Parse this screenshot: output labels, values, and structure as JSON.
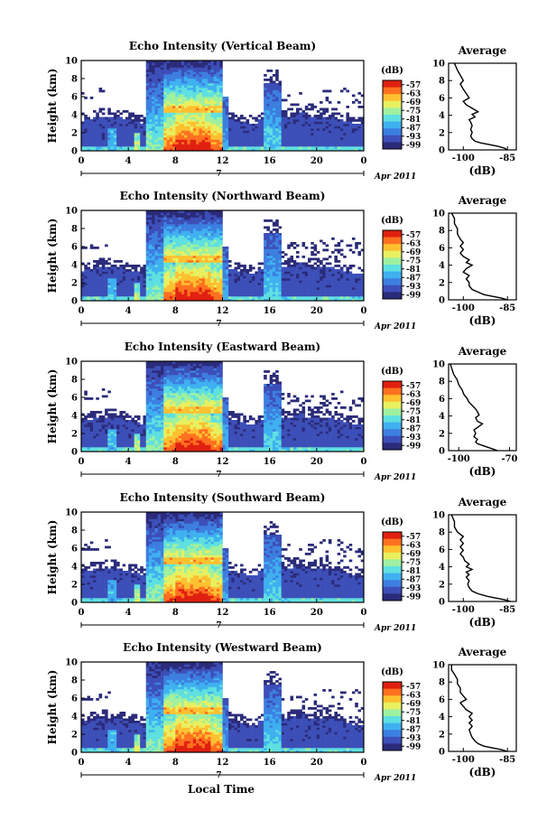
{
  "chart_data": {
    "type": "heatmap",
    "xlabel": "Local Time",
    "date_label": "7",
    "date_suffix": "Apr 2011",
    "x_ticks": [
      "0",
      "4",
      "8",
      "12",
      "16",
      "20",
      "0"
    ],
    "xlim": [
      0,
      24
    ],
    "ylabel": "Height (km)",
    "y_ticks": [
      "0",
      "2",
      "4",
      "6",
      "8",
      "10"
    ],
    "ylim": [
      0,
      10
    ],
    "colorbar": {
      "unit": "(dB)",
      "ticks": [
        "-57",
        "-63",
        "-69",
        "-75",
        "-81",
        "-87",
        "-93",
        "-99"
      ],
      "colors": [
        "#2b2b7a",
        "#3d4fb8",
        "#3d7fe0",
        "#3fb0f0",
        "#5fe0e0",
        "#9ff0a0",
        "#e8f060",
        "#ffc030",
        "#ff7020",
        "#e02010"
      ]
    },
    "average_panel": {
      "title": "Average",
      "xlabel": "(dB)",
      "y_ticks": [
        "0",
        "2",
        "4",
        "6",
        "8",
        "10"
      ]
    },
    "panels": [
      {
        "title": "Echo Intensity (Vertical Beam)",
        "avg_x_ticks": [
          "-100",
          "-85"
        ],
        "avg_xlim": [
          -105,
          -82
        ],
        "avg_profile": [
          [
            -85,
            0.0
          ],
          [
            -86,
            0.2
          ],
          [
            -88,
            0.4
          ],
          [
            -91,
            0.6
          ],
          [
            -94,
            0.8
          ],
          [
            -96,
            1.0
          ],
          [
            -97,
            1.3
          ],
          [
            -97.5,
            1.6
          ],
          [
            -97,
            2.0
          ],
          [
            -97.5,
            2.4
          ],
          [
            -97,
            2.8
          ],
          [
            -97.5,
            3.2
          ],
          [
            -98,
            3.5
          ],
          [
            -96,
            3.8
          ],
          [
            -97,
            4.1
          ],
          [
            -95,
            4.4
          ],
          [
            -97,
            4.8
          ],
          [
            -99,
            5.2
          ],
          [
            -100,
            5.6
          ],
          [
            -98,
            6.0
          ],
          [
            -99,
            6.5
          ],
          [
            -100,
            7.0
          ],
          [
            -101,
            7.6
          ],
          [
            -100,
            8.0
          ],
          [
            -101,
            8.6
          ],
          [
            -102,
            9.2
          ],
          [
            -103,
            10.0
          ]
        ]
      },
      {
        "title": "Echo Intensity (Northward Beam)",
        "avg_x_ticks": [
          "-100",
          "-85"
        ],
        "avg_xlim": [
          -105,
          -82
        ],
        "avg_profile": [
          [
            -85,
            0.0
          ],
          [
            -87,
            0.2
          ],
          [
            -90,
            0.4
          ],
          [
            -93,
            0.6
          ],
          [
            -95,
            0.9
          ],
          [
            -97,
            1.2
          ],
          [
            -98,
            1.6
          ],
          [
            -98,
            2.0
          ],
          [
            -99,
            2.4
          ],
          [
            -98,
            2.8
          ],
          [
            -100,
            3.2
          ],
          [
            -99,
            3.6
          ],
          [
            -97,
            4.0
          ],
          [
            -99,
            4.3
          ],
          [
            -98,
            4.6
          ],
          [
            -100,
            5.0
          ],
          [
            -101,
            5.4
          ],
          [
            -100,
            5.8
          ],
          [
            -101,
            6.2
          ],
          [
            -100,
            6.6
          ],
          [
            -101,
            7.0
          ],
          [
            -102,
            7.6
          ],
          [
            -102,
            8.2
          ],
          [
            -103,
            8.8
          ],
          [
            -103,
            9.4
          ],
          [
            -104,
            10.0
          ]
        ]
      },
      {
        "title": "Echo Intensity (Eastward Beam)",
        "avg_x_ticks": [
          "-100",
          "-70"
        ],
        "avg_xlim": [
          -106,
          -66
        ],
        "avg_profile": [
          [
            -77,
            0.0
          ],
          [
            -80,
            0.2
          ],
          [
            -83,
            0.4
          ],
          [
            -86,
            0.6
          ],
          [
            -89,
            0.8
          ],
          [
            -90,
            1.0
          ],
          [
            -89,
            1.3
          ],
          [
            -91,
            1.6
          ],
          [
            -90,
            2.0
          ],
          [
            -91,
            2.4
          ],
          [
            -88,
            2.8
          ],
          [
            -86,
            3.1
          ],
          [
            -89,
            3.4
          ],
          [
            -90,
            3.8
          ],
          [
            -88,
            4.1
          ],
          [
            -89,
            4.5
          ],
          [
            -90,
            4.8
          ],
          [
            -92,
            5.2
          ],
          [
            -94,
            5.6
          ],
          [
            -95,
            6.0
          ],
          [
            -97,
            6.5
          ],
          [
            -98,
            7.0
          ],
          [
            -100,
            7.6
          ],
          [
            -101,
            8.2
          ],
          [
            -103,
            8.8
          ],
          [
            -104,
            9.4
          ],
          [
            -105,
            10.0
          ]
        ]
      },
      {
        "title": "Echo Intensity (Southward Beam)",
        "avg_x_ticks": [
          "-100",
          "-85"
        ],
        "avg_xlim": [
          -105,
          -82
        ],
        "avg_profile": [
          [
            -84,
            0.0
          ],
          [
            -86,
            0.2
          ],
          [
            -89,
            0.4
          ],
          [
            -92,
            0.6
          ],
          [
            -95,
            0.9
          ],
          [
            -97,
            1.2
          ],
          [
            -98,
            1.6
          ],
          [
            -98.5,
            2.0
          ],
          [
            -98,
            2.4
          ],
          [
            -99,
            2.8
          ],
          [
            -98,
            3.1
          ],
          [
            -99,
            3.4
          ],
          [
            -97,
            3.7
          ],
          [
            -99,
            4.0
          ],
          [
            -98,
            4.3
          ],
          [
            -99.5,
            4.7
          ],
          [
            -100,
            5.1
          ],
          [
            -101,
            5.5
          ],
          [
            -100,
            5.9
          ],
          [
            -101,
            6.3
          ],
          [
            -100,
            6.7
          ],
          [
            -101,
            7.1
          ],
          [
            -100,
            7.5
          ],
          [
            -102,
            8.0
          ],
          [
            -103,
            8.6
          ],
          [
            -103,
            9.2
          ],
          [
            -104,
            10.0
          ]
        ]
      },
      {
        "title": "Echo Intensity (Westward Beam)",
        "avg_x_ticks": [
          "-100",
          "-85"
        ],
        "avg_xlim": [
          -105,
          -82
        ],
        "avg_profile": [
          [
            -85,
            0.0
          ],
          [
            -87,
            0.2
          ],
          [
            -90,
            0.4
          ],
          [
            -93,
            0.6
          ],
          [
            -95,
            0.9
          ],
          [
            -96,
            1.2
          ],
          [
            -97,
            1.6
          ],
          [
            -97.5,
            2.0
          ],
          [
            -98,
            2.5
          ],
          [
            -97,
            2.9
          ],
          [
            -98,
            3.3
          ],
          [
            -97,
            3.6
          ],
          [
            -98,
            4.0
          ],
          [
            -97,
            4.4
          ],
          [
            -99,
            4.8
          ],
          [
            -100,
            5.2
          ],
          [
            -101,
            5.6
          ],
          [
            -99,
            6.0
          ],
          [
            -100,
            6.4
          ],
          [
            -101,
            6.8
          ],
          [
            -101,
            7.3
          ],
          [
            -102,
            7.8
          ],
          [
            -102,
            8.3
          ],
          [
            -103,
            8.9
          ],
          [
            -104,
            9.4
          ],
          [
            -104,
            10.0
          ]
        ]
      }
    ]
  }
}
